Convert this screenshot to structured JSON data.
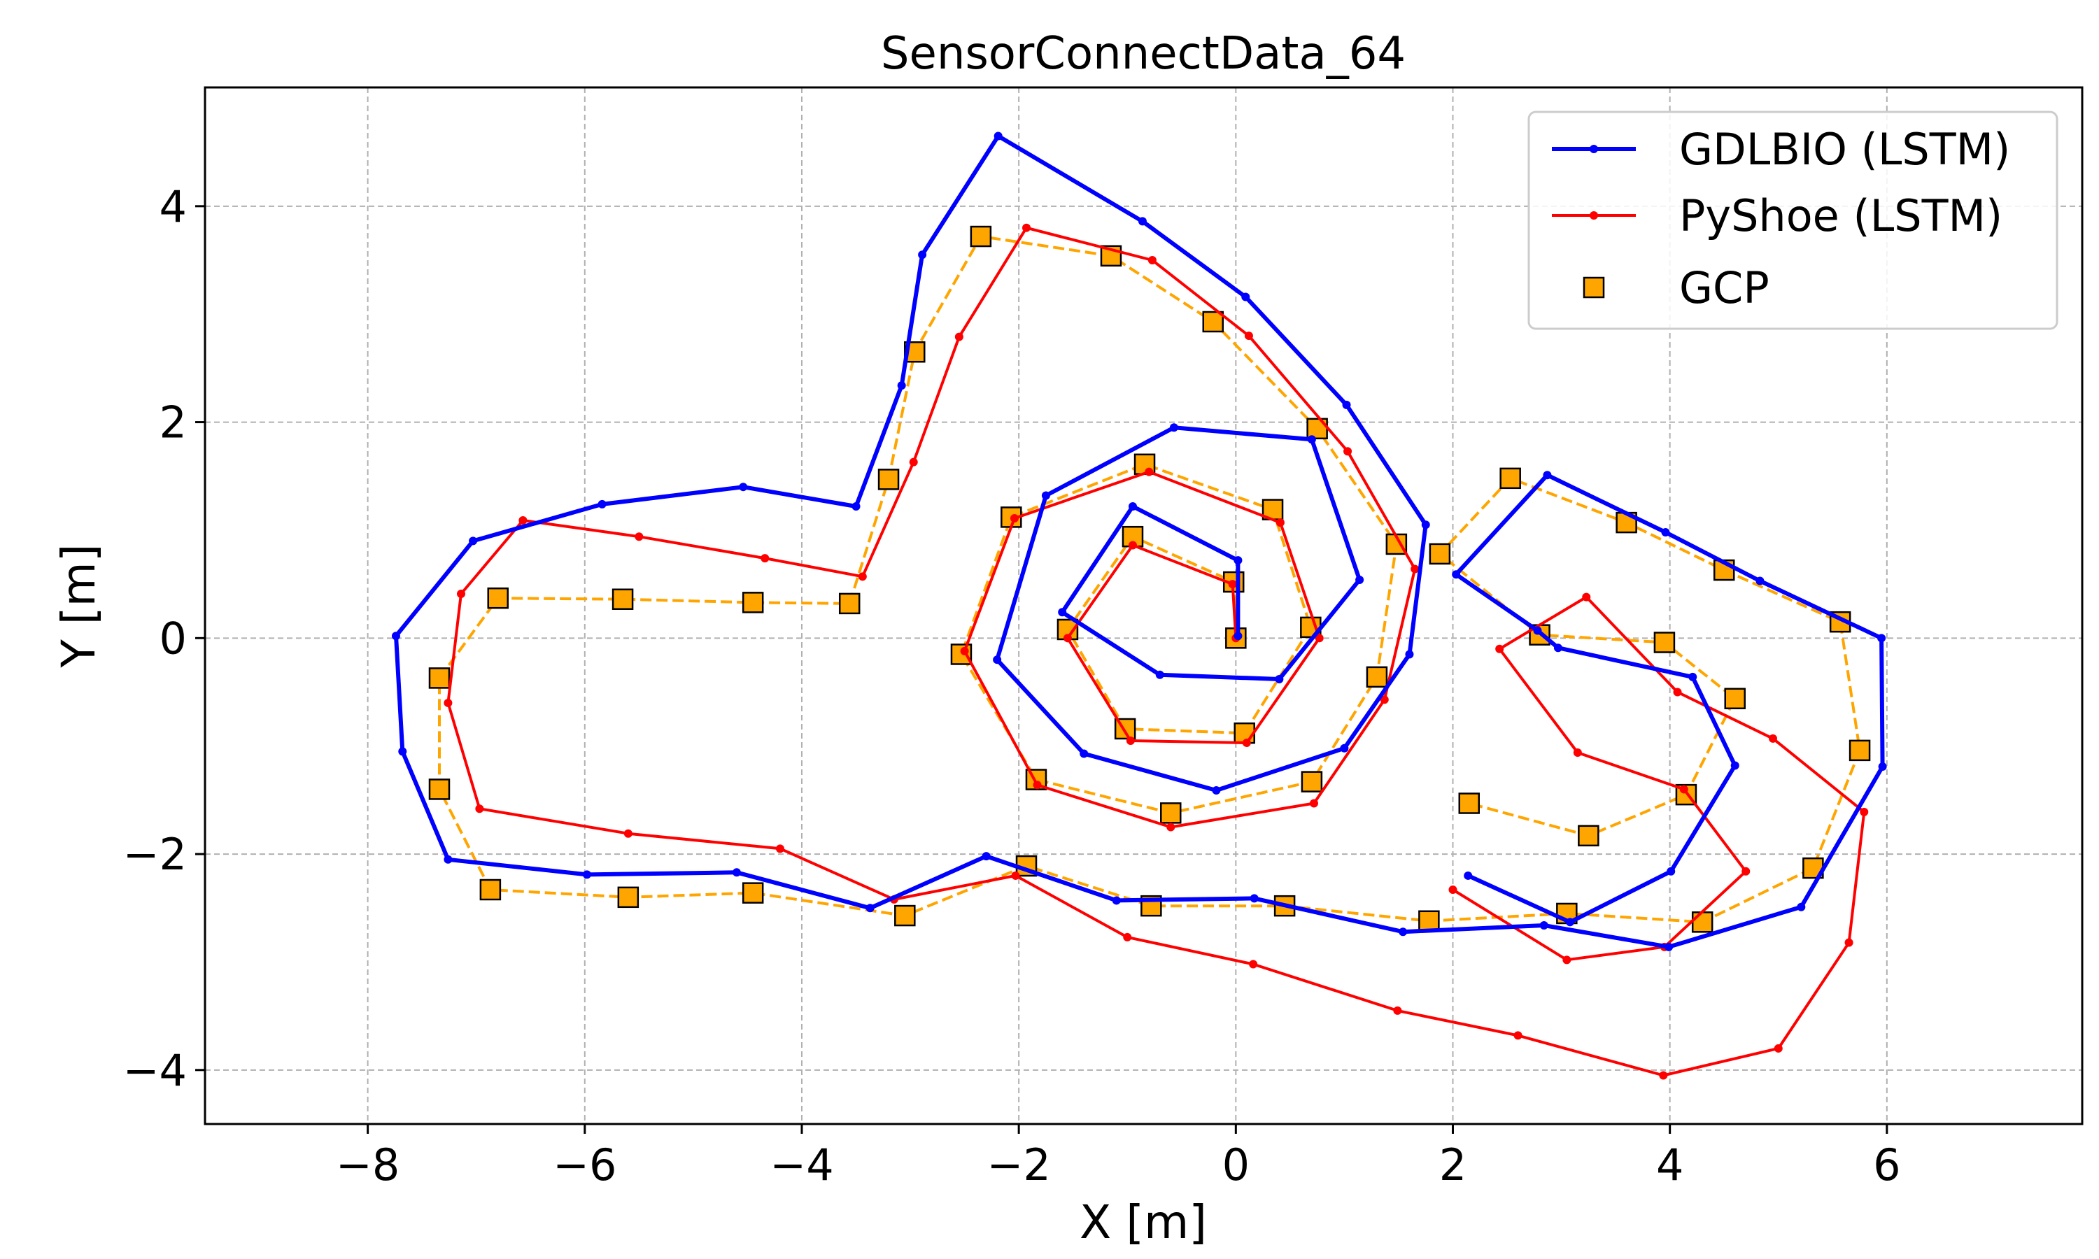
{
  "chart_data": {
    "type": "line",
    "title": "SensorConnectData_64",
    "xlabel": "X [m]",
    "ylabel": "Y [m]",
    "xlim": [
      -9.5,
      7.8
    ],
    "ylim": [
      -4.5,
      5.1
    ],
    "xticks": [
      -8,
      -6,
      -4,
      -2,
      0,
      2,
      4,
      6
    ],
    "xtick_labels": [
      "−8",
      "−6",
      "−4",
      "−2",
      "0",
      "2",
      "4",
      "6"
    ],
    "yticks": [
      -4,
      -2,
      0,
      2,
      4
    ],
    "ytick_labels": [
      "−4",
      "−2",
      "0",
      "2",
      "4"
    ],
    "grid": true,
    "legend_position": "top-right",
    "series": [
      {
        "name": "GDLBIO (LSTM)",
        "color": "#0000ff",
        "style": "solid-line-with-dot-markers",
        "points": [
          [
            0.02,
            0.02
          ],
          [
            0.02,
            0.72
          ],
          [
            -0.95,
            1.22
          ],
          [
            -1.6,
            0.24
          ],
          [
            -0.7,
            -0.34
          ],
          [
            0.4,
            -0.38
          ],
          [
            1.14,
            0.54
          ],
          [
            0.7,
            1.84
          ],
          [
            -0.57,
            1.95
          ],
          [
            -1.75,
            1.32
          ],
          [
            -2.2,
            -0.2
          ],
          [
            -1.4,
            -1.07
          ],
          [
            -0.18,
            -1.41
          ],
          [
            1.0,
            -1.02
          ],
          [
            1.6,
            -0.15
          ],
          [
            1.75,
            1.05
          ],
          [
            1.02,
            2.16
          ],
          [
            0.09,
            3.16
          ],
          [
            -0.86,
            3.86
          ],
          [
            -2.19,
            4.65
          ],
          [
            -2.89,
            3.55
          ],
          [
            -3.08,
            2.34
          ],
          [
            -3.5,
            1.22
          ],
          [
            -4.54,
            1.4
          ],
          [
            -5.84,
            1.24
          ],
          [
            -7.03,
            0.9
          ],
          [
            -7.74,
            0.02
          ],
          [
            -7.68,
            -1.05
          ],
          [
            -7.26,
            -2.05
          ],
          [
            -5.98,
            -2.19
          ],
          [
            -4.6,
            -2.17
          ],
          [
            -3.37,
            -2.5
          ],
          [
            -2.3,
            -2.02
          ],
          [
            -1.1,
            -2.43
          ],
          [
            0.17,
            -2.41
          ],
          [
            1.54,
            -2.72
          ],
          [
            2.84,
            -2.66
          ],
          [
            3.99,
            -2.86
          ],
          [
            5.21,
            -2.49
          ],
          [
            5.96,
            -1.19
          ],
          [
            5.95,
            0.0
          ],
          [
            4.83,
            0.53
          ],
          [
            3.96,
            0.98
          ],
          [
            2.87,
            1.51
          ],
          [
            2.03,
            0.59
          ],
          [
            2.78,
            0.07
          ],
          [
            2.97,
            -0.09
          ],
          [
            4.21,
            -0.36
          ],
          [
            4.6,
            -1.18
          ],
          [
            4.01,
            -2.16
          ],
          [
            3.08,
            -2.63
          ],
          [
            2.14,
            -2.2
          ]
        ]
      },
      {
        "name": "PyShoe (LSTM)",
        "color": "#ff0000",
        "style": "solid-line-with-dot-markers",
        "points": [
          [
            0.0,
            0.0
          ],
          [
            -0.03,
            0.5
          ],
          [
            -0.95,
            0.86
          ],
          [
            -1.55,
            0.0
          ],
          [
            -0.97,
            -0.95
          ],
          [
            0.1,
            -0.97
          ],
          [
            0.77,
            0.0
          ],
          [
            0.41,
            1.07
          ],
          [
            -0.8,
            1.54
          ],
          [
            -2.04,
            1.11
          ],
          [
            -2.5,
            -0.12
          ],
          [
            -1.83,
            -1.36
          ],
          [
            -0.6,
            -1.75
          ],
          [
            0.72,
            -1.53
          ],
          [
            1.37,
            -0.57
          ],
          [
            1.65,
            0.64
          ],
          [
            1.03,
            1.73
          ],
          [
            0.12,
            2.8
          ],
          [
            -0.77,
            3.5
          ],
          [
            -1.93,
            3.8
          ],
          [
            -2.55,
            2.79
          ],
          [
            -2.97,
            1.63
          ],
          [
            -3.44,
            0.57
          ],
          [
            -4.34,
            0.74
          ],
          [
            -5.5,
            0.94
          ],
          [
            -6.57,
            1.09
          ],
          [
            -7.14,
            0.41
          ],
          [
            -7.26,
            -0.6
          ],
          [
            -6.97,
            -1.58
          ],
          [
            -5.6,
            -1.81
          ],
          [
            -4.2,
            -1.95
          ],
          [
            -3.15,
            -2.42
          ],
          [
            -2.03,
            -2.2
          ],
          [
            -1.0,
            -2.77
          ],
          [
            0.16,
            -3.02
          ],
          [
            1.49,
            -3.45
          ],
          [
            2.6,
            -3.68
          ],
          [
            3.94,
            -4.05
          ],
          [
            5.0,
            -3.8
          ],
          [
            5.65,
            -2.82
          ],
          [
            5.79,
            -1.61
          ],
          [
            4.95,
            -0.93
          ],
          [
            4.07,
            -0.5
          ],
          [
            3.23,
            0.38
          ],
          [
            2.43,
            -0.1
          ],
          [
            3.15,
            -1.06
          ],
          [
            4.13,
            -1.4
          ],
          [
            4.7,
            -2.16
          ],
          [
            3.95,
            -2.86
          ],
          [
            3.05,
            -2.98
          ],
          [
            2.0,
            -2.33
          ]
        ]
      },
      {
        "name": "GCP",
        "color": "#ffa500",
        "style": "dashed-line-with-square-markers",
        "points": [
          [
            0.0,
            0.0
          ],
          [
            -0.02,
            0.52
          ],
          [
            -0.95,
            0.94
          ],
          [
            -1.55,
            0.08
          ],
          [
            -1.02,
            -0.84
          ],
          [
            0.08,
            -0.88
          ],
          [
            0.69,
            0.1
          ],
          [
            0.34,
            1.19
          ],
          [
            -0.84,
            1.61
          ],
          [
            -2.07,
            1.12
          ],
          [
            -2.53,
            -0.15
          ],
          [
            -1.84,
            -1.31
          ],
          [
            -0.6,
            -1.62
          ],
          [
            0.7,
            -1.33
          ],
          [
            1.3,
            -0.36
          ],
          [
            1.48,
            0.87
          ],
          [
            0.75,
            1.94
          ],
          [
            -0.21,
            2.93
          ],
          [
            -1.15,
            3.54
          ],
          [
            -2.35,
            3.72
          ],
          [
            -2.96,
            2.65
          ],
          [
            -3.2,
            1.47
          ],
          [
            -3.56,
            0.32
          ],
          [
            -4.45,
            0.33
          ],
          [
            -5.65,
            0.36
          ],
          [
            -6.8,
            0.37
          ],
          [
            -7.34,
            -0.37
          ],
          [
            -7.34,
            -1.4
          ],
          [
            -6.87,
            -2.33
          ],
          [
            -5.6,
            -2.4
          ],
          [
            -4.45,
            -2.36
          ],
          [
            -3.05,
            -2.57
          ],
          [
            -1.93,
            -2.11
          ],
          [
            -0.78,
            -2.48
          ],
          [
            0.45,
            -2.48
          ],
          [
            1.78,
            -2.62
          ],
          [
            3.05,
            -2.55
          ],
          [
            4.3,
            -2.63
          ],
          [
            5.32,
            -2.13
          ],
          [
            5.75,
            -1.04
          ],
          [
            5.57,
            0.15
          ],
          [
            4.5,
            0.63
          ],
          [
            3.6,
            1.07
          ],
          [
            2.53,
            1.48
          ],
          [
            1.88,
            0.78
          ],
          [
            2.8,
            0.03
          ],
          [
            3.95,
            -0.04
          ],
          [
            4.6,
            -0.56
          ],
          [
            4.15,
            -1.45
          ],
          [
            3.25,
            -1.83
          ],
          [
            2.15,
            -1.53
          ]
        ]
      }
    ]
  }
}
